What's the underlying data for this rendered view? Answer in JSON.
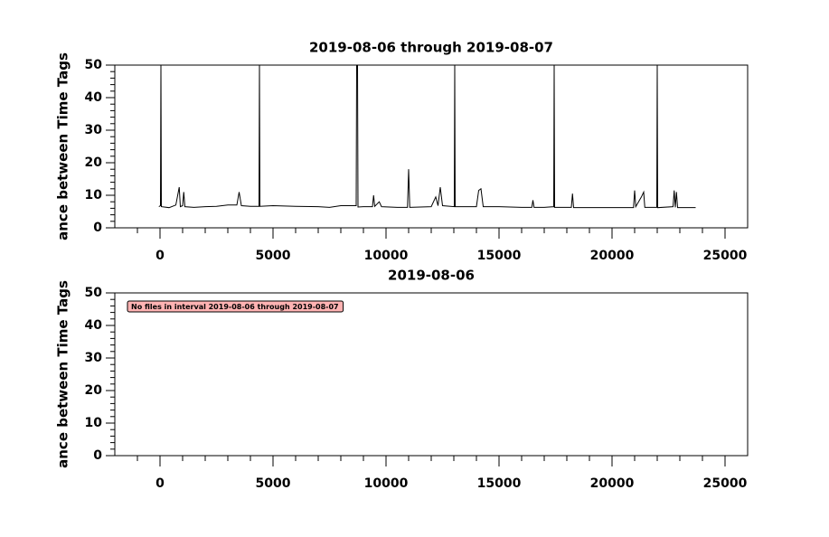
{
  "chart_data": [
    {
      "type": "line",
      "title": "2019-08-06 through 2019-08-07",
      "y_label": "ance between Time Tags",
      "xlim": [
        -2000,
        26000
      ],
      "xticks": [
        0,
        5000,
        10000,
        15000,
        20000,
        25000
      ],
      "xminorticks": [
        -1000,
        1000,
        2000,
        3000,
        4000,
        6000,
        7000,
        8000,
        9000,
        11000,
        12000,
        13000,
        14000,
        16000,
        17000,
        18000,
        19000,
        21000,
        22000,
        23000,
        24000
      ],
      "ylim": [
        0,
        50
      ],
      "yticks": [
        0,
        10,
        20,
        30,
        40,
        50
      ],
      "yminorticks": [
        2,
        4,
        6,
        8,
        12,
        14,
        16,
        18,
        22,
        24,
        26,
        28,
        32,
        34,
        36,
        38,
        42,
        44,
        46,
        48
      ],
      "series": [
        {
          "color": "#000000",
          "x": [
            -50,
            20,
            40,
            60,
            400,
            700,
            850,
            900,
            1000,
            1050,
            1100,
            1500,
            2000,
            2500,
            3000,
            3400,
            3500,
            3600,
            4000,
            4380,
            4400,
            4420,
            5000,
            6000,
            7000,
            7500,
            8000,
            8680,
            8700,
            8740,
            8760,
            9000,
            9400,
            9450,
            9500,
            9700,
            9800,
            10500,
            10950,
            11000,
            11050,
            12000,
            12200,
            12300,
            12400,
            12500,
            13020,
            13040,
            13060,
            14000,
            14100,
            14200,
            14300,
            15000,
            16000,
            16450,
            16500,
            16550,
            17000,
            17420,
            17440,
            17460,
            18200,
            18250,
            18300,
            19000,
            20000,
            20950,
            21000,
            21050,
            21300,
            21400,
            21450,
            21980,
            22000,
            22020,
            22700,
            22750,
            22800,
            22850,
            22900,
            23700
          ],
          "values": [
            6.5,
            6.8,
            50,
            6.5,
            6.2,
            7,
            12.5,
            6.5,
            6.8,
            11,
            6.5,
            6.3,
            6.5,
            6.6,
            7,
            7,
            11,
            6.8,
            6.6,
            6.6,
            50,
            6.6,
            6.8,
            6.6,
            6.5,
            6.3,
            6.8,
            6.8,
            50,
            50,
            6.4,
            6.5,
            6.5,
            10,
            6.6,
            8,
            6.5,
            6.3,
            6.3,
            18,
            6.3,
            6.5,
            9.5,
            6.8,
            12.5,
            6.8,
            6.5,
            50,
            6.5,
            6.5,
            11.5,
            12,
            6.5,
            6.5,
            6.3,
            6.3,
            8.5,
            6.3,
            6.3,
            6.5,
            50,
            6.3,
            6.3,
            10.5,
            6.2,
            6.2,
            6.2,
            6.2,
            11.5,
            6.5,
            9.5,
            11,
            6.3,
            6.3,
            50,
            6.2,
            6.5,
            11.5,
            6.3,
            11,
            6.2,
            6.2
          ]
        }
      ]
    },
    {
      "type": "line",
      "title": "2019-08-06",
      "y_label": "ance between Time Tags",
      "annotation": "No files in interval 2019-08-06 through 2019-08-07",
      "xlim": [
        -2000,
        26000
      ],
      "xticks": [
        0,
        5000,
        10000,
        15000,
        20000,
        25000
      ],
      "xminorticks": [
        -1000,
        1000,
        2000,
        3000,
        4000,
        6000,
        7000,
        8000,
        9000,
        11000,
        12000,
        13000,
        14000,
        16000,
        17000,
        18000,
        19000,
        21000,
        22000,
        23000,
        24000
      ],
      "ylim": [
        0,
        50
      ],
      "yticks": [
        0,
        10,
        20,
        30,
        40,
        50
      ],
      "yminorticks": [
        2,
        4,
        6,
        8,
        12,
        14,
        16,
        18,
        22,
        24,
        26,
        28,
        32,
        34,
        36,
        38,
        42,
        44,
        46,
        48
      ],
      "series": []
    }
  ]
}
